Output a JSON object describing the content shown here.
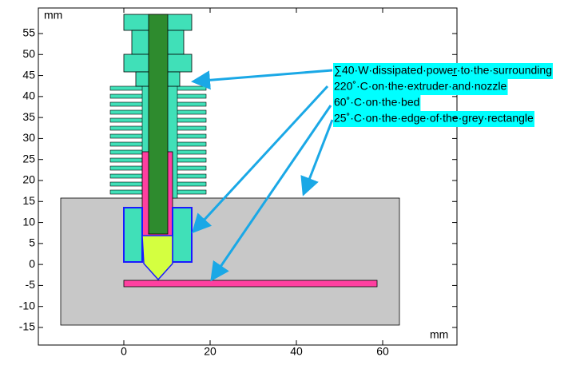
{
  "axes": {
    "y_unit": "mm",
    "x_unit": "mm",
    "xticks": [
      0,
      20,
      40,
      60
    ],
    "yticks": [
      55,
      50,
      45,
      40,
      35,
      30,
      25,
      20,
      15,
      10,
      5,
      0,
      -5,
      -10,
      -15
    ]
  },
  "annotations": [
    "∑40·W·dissipated·power·to·the·surrounding",
    "220˚·C·on·the·extruder·and·nozzle",
    "60˚·C·on·the·bed",
    "25˚·C·on·the·edge·of·the·grey·rectangle"
  ]
}
